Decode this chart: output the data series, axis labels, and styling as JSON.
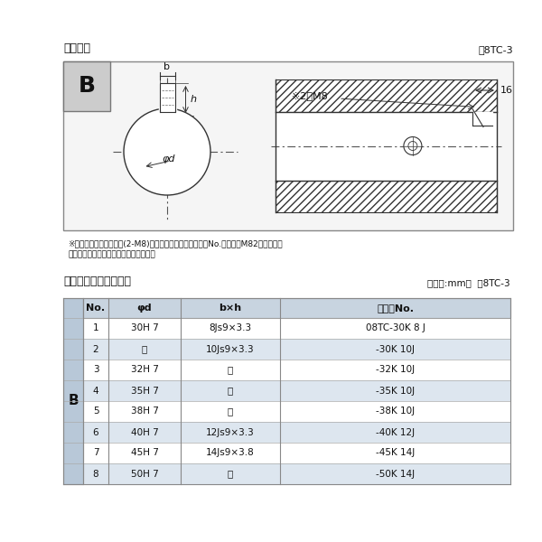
{
  "title_top": "軸穴形状",
  "fig_label_top": "図8TC-3",
  "title_bottom": "軸穴形状コード一覧表",
  "unit_label": "（単位:mm）  表8TC-3",
  "note_line1": "※セットボルト用タップ(2-M8)が必要な場合は右記コードNo.の末尾にM82を付ける。",
  "note_line2": "（セットボルトは付属されています。）",
  "type_label": "B",
  "dim_b": "b",
  "dim_h": "h",
  "dim_phi": "φd",
  "dim_note": "※2－M8",
  "dim_16": "16",
  "table_headers": [
    "No.",
    "φd",
    "b×h",
    "コードNo."
  ],
  "col_b_label": "B",
  "table_rows": [
    [
      "1",
      "30H 7",
      "8Js9×3.3",
      "08TC-30K 8 J"
    ],
    [
      "2",
      "〃",
      "10Js9×3.3",
      "-30K 10J"
    ],
    [
      "3",
      "32H 7",
      "〃",
      "-32K 10J"
    ],
    [
      "4",
      "35H 7",
      "〃",
      "-35K 10J"
    ],
    [
      "5",
      "38H 7",
      "〃",
      "-38K 10J"
    ],
    [
      "6",
      "40H 7",
      "12Js9×3.3",
      "-40K 12J"
    ],
    [
      "7",
      "45H 7",
      "14Js9×3.8",
      "-45K 14J"
    ],
    [
      "8",
      "50H 7",
      "〃",
      "-50K 14J"
    ]
  ],
  "bg_color": "#ffffff",
  "border_color": "#000000",
  "header_bg": "#c8d4e0",
  "row_alt_bg": "#dde6ef",
  "row_norm_bg": "#ffffff",
  "b_col_bg": "#b8c8d8",
  "line_color": "#333333",
  "text_color": "#111111"
}
